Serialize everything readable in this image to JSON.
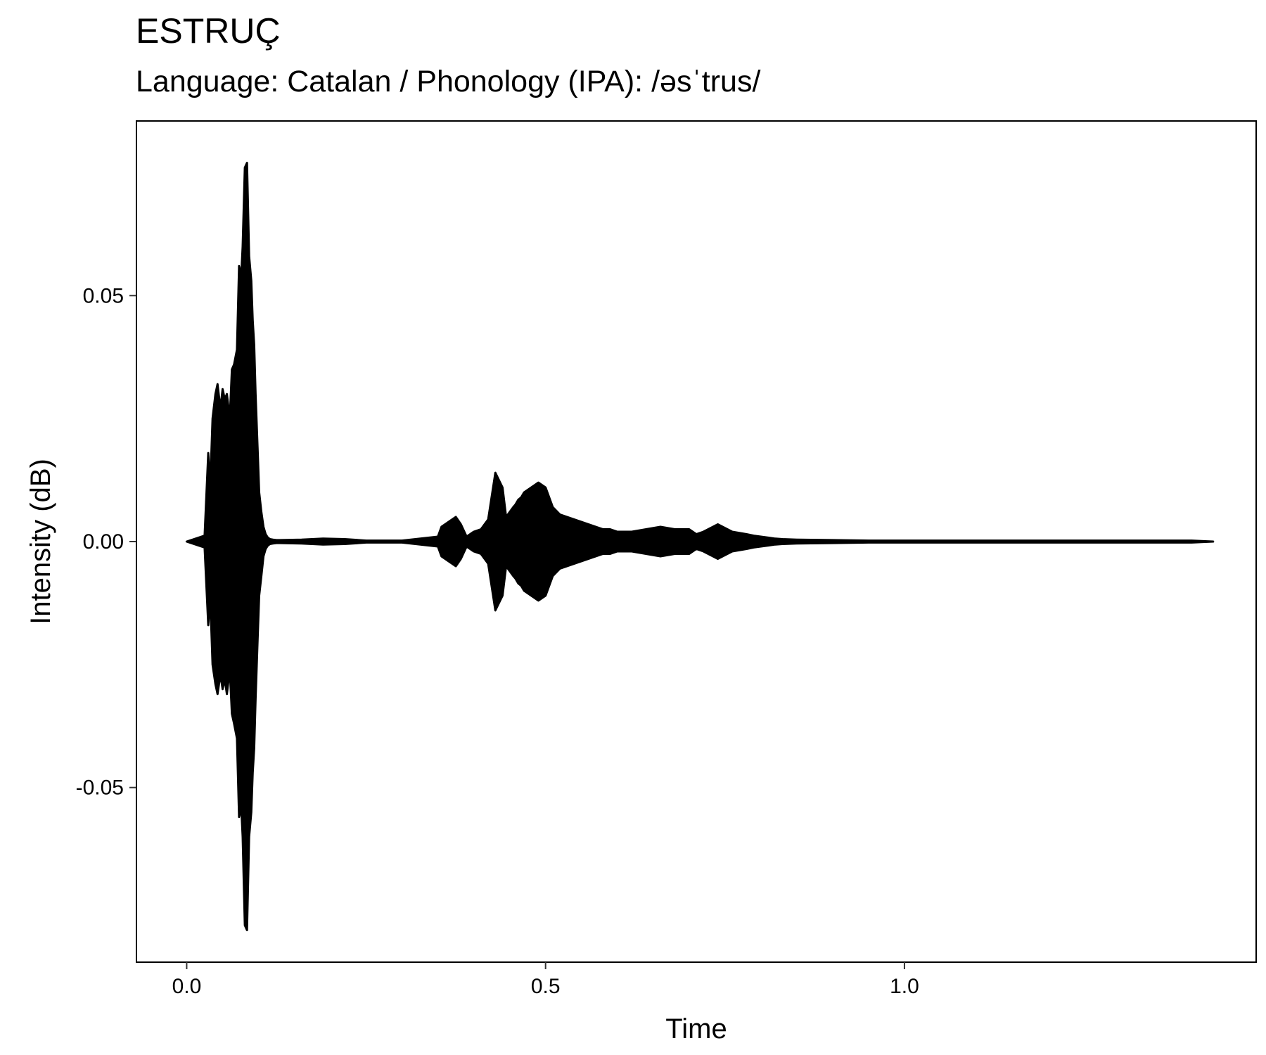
{
  "chart_data": {
    "type": "area",
    "title": "ESTRUÇ",
    "subtitle": "Language: Catalan / Phonology (IPA): /əsˈtrus/",
    "xlabel": "Time",
    "ylabel": "Intensity (dB)",
    "xlim": [
      -0.07,
      1.49
    ],
    "ylim": [
      -0.0855,
      0.0855
    ],
    "x_ticks": [
      {
        "value": 0.0,
        "label": "0.0"
      },
      {
        "value": 0.5,
        "label": "0.5"
      },
      {
        "value": 1.0,
        "label": "1.0"
      }
    ],
    "y_ticks": [
      {
        "value": 0.05,
        "label": "0.05"
      },
      {
        "value": 0.0,
        "label": "0.00"
      },
      {
        "value": -0.05,
        "label": "-0.05"
      }
    ],
    "grid": false,
    "series": [
      {
        "color": "#000000",
        "x": [
          0.0,
          0.025,
          0.03,
          0.033,
          0.036,
          0.04,
          0.043,
          0.047,
          0.05,
          0.053,
          0.056,
          0.06,
          0.063,
          0.066,
          0.07,
          0.073,
          0.076,
          0.078,
          0.081,
          0.084,
          0.087,
          0.09,
          0.092,
          0.094,
          0.096,
          0.099,
          0.101,
          0.104,
          0.107,
          0.11,
          0.113,
          0.116,
          0.12,
          0.125,
          0.13,
          0.16,
          0.19,
          0.22,
          0.25,
          0.3,
          0.35,
          0.355,
          0.365,
          0.375,
          0.382,
          0.39,
          0.4,
          0.41,
          0.42,
          0.43,
          0.44,
          0.445,
          0.45,
          0.455,
          0.458,
          0.462,
          0.466,
          0.47,
          0.48,
          0.49,
          0.5,
          0.51,
          0.52,
          0.53,
          0.54,
          0.55,
          0.56,
          0.57,
          0.58,
          0.59,
          0.6,
          0.62,
          0.64,
          0.66,
          0.68,
          0.7,
          0.71,
          0.72,
          0.74,
          0.76,
          0.78,
          0.79,
          0.8,
          0.81,
          0.82,
          0.83,
          0.85,
          0.9,
          0.95,
          1.0,
          1.1,
          1.2,
          1.3,
          1.4,
          1.43
        ],
        "upper": [
          0.0,
          0.0012,
          0.018,
          0.012,
          0.025,
          0.03,
          0.032,
          0.027,
          0.031,
          0.029,
          0.03,
          0.025,
          0.035,
          0.036,
          0.039,
          0.056,
          0.054,
          0.06,
          0.076,
          0.077,
          0.058,
          0.053,
          0.045,
          0.04,
          0.03,
          0.018,
          0.01,
          0.006,
          0.003,
          0.0015,
          0.0008,
          0.0005,
          0.0004,
          0.0003,
          0.0003,
          0.0004,
          0.0006,
          0.0005,
          0.0002,
          0.0002,
          0.001,
          0.003,
          0.004,
          0.005,
          0.0035,
          0.001,
          0.002,
          0.0025,
          0.0045,
          0.014,
          0.011,
          0.005,
          0.006,
          0.007,
          0.0075,
          0.0085,
          0.009,
          0.01,
          0.011,
          0.012,
          0.011,
          0.007,
          0.0055,
          0.005,
          0.0045,
          0.004,
          0.0035,
          0.003,
          0.0025,
          0.0025,
          0.002,
          0.002,
          0.0025,
          0.003,
          0.0025,
          0.0025,
          0.0015,
          0.002,
          0.0035,
          0.002,
          0.0015,
          0.0012,
          0.001,
          0.0008,
          0.0006,
          0.0005,
          0.0004,
          0.0003,
          0.0002,
          0.0002,
          0.0002,
          0.0002,
          0.0002,
          0.0002,
          0.0
        ],
        "lower": [
          0.0,
          -0.0012,
          -0.017,
          -0.012,
          -0.025,
          -0.029,
          -0.031,
          -0.027,
          -0.03,
          -0.028,
          -0.031,
          -0.026,
          -0.035,
          -0.037,
          -0.04,
          -0.056,
          -0.054,
          -0.06,
          -0.078,
          -0.079,
          -0.06,
          -0.055,
          -0.047,
          -0.042,
          -0.032,
          -0.019,
          -0.011,
          -0.007,
          -0.003,
          -0.0015,
          -0.0008,
          -0.0005,
          -0.0004,
          -0.0003,
          -0.0003,
          -0.0004,
          -0.0006,
          -0.0005,
          -0.0002,
          -0.0002,
          -0.001,
          -0.003,
          -0.004,
          -0.005,
          -0.0035,
          -0.001,
          -0.002,
          -0.0025,
          -0.0045,
          -0.014,
          -0.011,
          -0.005,
          -0.006,
          -0.007,
          -0.0075,
          -0.0085,
          -0.009,
          -0.01,
          -0.011,
          -0.012,
          -0.011,
          -0.007,
          -0.0055,
          -0.005,
          -0.0045,
          -0.004,
          -0.0035,
          -0.003,
          -0.0025,
          -0.0025,
          -0.002,
          -0.002,
          -0.0025,
          -0.003,
          -0.0025,
          -0.0025,
          -0.0015,
          -0.002,
          -0.0035,
          -0.002,
          -0.0015,
          -0.0012,
          -0.001,
          -0.0008,
          -0.0006,
          -0.0005,
          -0.0004,
          -0.0003,
          -0.0002,
          -0.0002,
          -0.0002,
          -0.0002,
          -0.0002,
          -0.0002,
          0.0
        ]
      }
    ]
  }
}
